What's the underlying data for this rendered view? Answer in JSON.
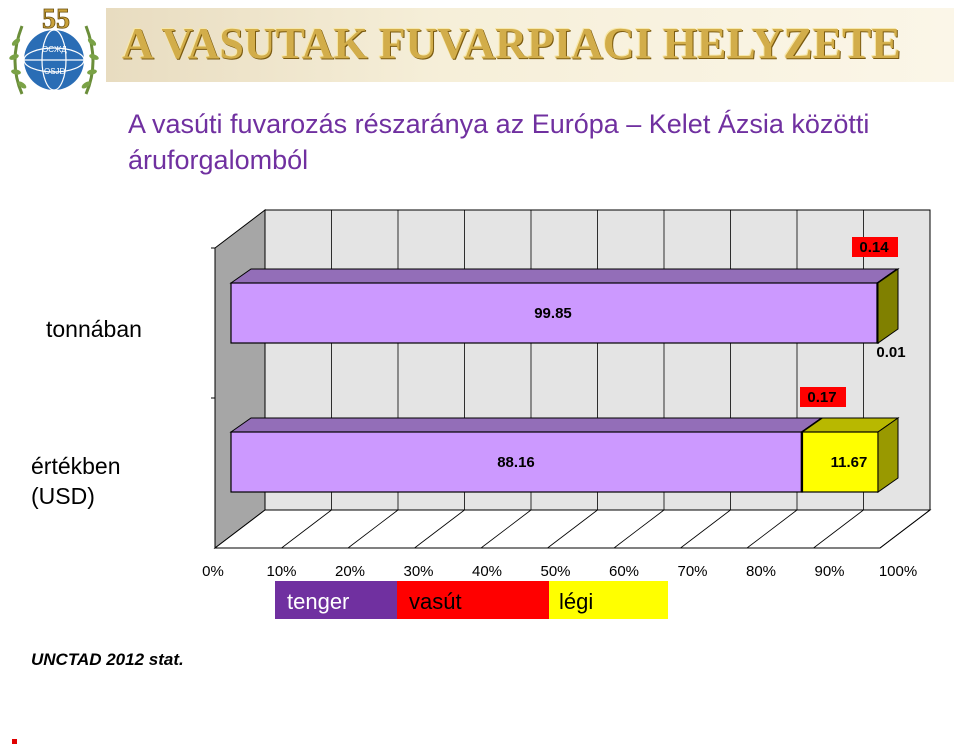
{
  "header": {
    "title": "A VASUTAK FUVARPIACI HELYZETE",
    "logo_number": "55",
    "logo_text_1": "ОСЖД",
    "logo_text_2": "OSJD"
  },
  "subtitle": "A vasúti fuvarozás részaránya az Európa – Kelet Ázsia közötti áruforgalomból",
  "source": "UNCTAD 2012 stat.",
  "colors": {
    "tenger": "#cc99ff",
    "tenger_legend": "#7030a0",
    "vasut": "#ff0000",
    "legi": "#ffff00"
  },
  "chart_data": {
    "type": "bar",
    "orientation": "horizontal",
    "stacked": "percent",
    "categories": [
      "tonnában",
      "értékben (USD)"
    ],
    "series": [
      {
        "name": "tenger",
        "values": [
          99.85,
          88.16
        ]
      },
      {
        "name": "vasút",
        "values": [
          0.14,
          0.17
        ]
      },
      {
        "name": "légi",
        "values": [
          0.01,
          11.67
        ]
      }
    ],
    "data_labels": {
      "tenger": [
        "99.85",
        "88.16"
      ],
      "vasut": [
        "0.14",
        "0.17"
      ],
      "legi": [
        "0.01",
        "11.67"
      ]
    },
    "x_ticks": [
      "0%",
      "10%",
      "20%",
      "30%",
      "40%",
      "50%",
      "60%",
      "70%",
      "80%",
      "90%",
      "100%"
    ],
    "xlim": [
      0,
      100
    ],
    "grid": true,
    "legend_position": "bottom"
  }
}
